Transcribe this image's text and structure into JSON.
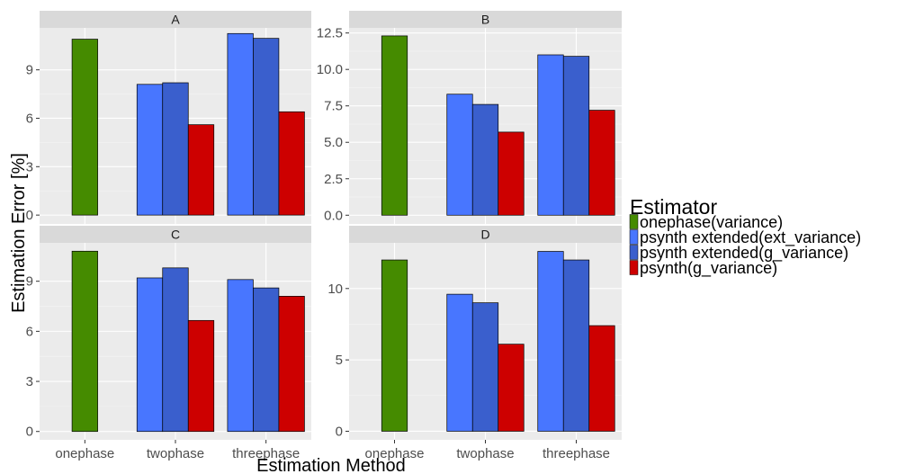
{
  "chart_data": {
    "type": "bar",
    "xlabel": "Estimation Method",
    "ylabel": "Estimation Error [%]",
    "categories": [
      "onephase",
      "twophase",
      "threephase"
    ],
    "legend": {
      "title": "Estimator",
      "position": "right",
      "entries": [
        {
          "name": "onephase(variance)",
          "color": "#458b00"
        },
        {
          "name": "psynth extended(ext_variance)",
          "color": "#4876ff"
        },
        {
          "name": "psynth extended(g_variance)",
          "color": "#3a5fcd"
        },
        {
          "name": "psynth(g_variance)",
          "color": "#cd0000"
        }
      ]
    },
    "grid": true,
    "panels": [
      {
        "label": "A",
        "ylim": [
          -0.55,
          11.6
        ],
        "yticks": [
          0,
          3,
          6,
          9
        ],
        "ytick_labels": [
          "0",
          "3",
          "6",
          "9"
        ],
        "bars": [
          {
            "category": "onephase",
            "series": "onephase(variance)",
            "value": 10.9
          },
          {
            "category": "twophase",
            "series": "psynth extended(ext_variance)",
            "value": 8.1
          },
          {
            "category": "twophase",
            "series": "psynth extended(g_variance)",
            "value": 8.2
          },
          {
            "category": "twophase",
            "series": "psynth(g_variance)",
            "value": 5.6
          },
          {
            "category": "threephase",
            "series": "psynth extended(ext_variance)",
            "value": 11.25
          },
          {
            "category": "threephase",
            "series": "psynth extended(g_variance)",
            "value": 10.95
          },
          {
            "category": "threephase",
            "series": "psynth(g_variance)",
            "value": 6.4
          }
        ]
      },
      {
        "label": "B",
        "ylim": [
          -0.6,
          12.85
        ],
        "yticks": [
          0,
          2.5,
          5,
          7.5,
          10,
          12.5
        ],
        "ytick_labels": [
          "0.0",
          "2.5",
          "5.0",
          "7.5",
          "10.0",
          "12.5"
        ],
        "bars": [
          {
            "category": "onephase",
            "series": "onephase(variance)",
            "value": 12.3
          },
          {
            "category": "twophase",
            "series": "psynth extended(ext_variance)",
            "value": 8.3
          },
          {
            "category": "twophase",
            "series": "psynth extended(g_variance)",
            "value": 7.6
          },
          {
            "category": "twophase",
            "series": "psynth(g_variance)",
            "value": 5.7
          },
          {
            "category": "threephase",
            "series": "psynth extended(ext_variance)",
            "value": 11.0
          },
          {
            "category": "threephase",
            "series": "psynth extended(g_variance)",
            "value": 10.9
          },
          {
            "category": "threephase",
            "series": "psynth(g_variance)",
            "value": 7.2
          }
        ]
      },
      {
        "label": "C",
        "ylim": [
          -0.5,
          11.3
        ],
        "yticks": [
          0,
          3,
          6,
          9
        ],
        "ytick_labels": [
          "0",
          "3",
          "6",
          "9"
        ],
        "bars": [
          {
            "category": "onephase",
            "series": "onephase(variance)",
            "value": 10.8
          },
          {
            "category": "twophase",
            "series": "psynth extended(ext_variance)",
            "value": 9.2
          },
          {
            "category": "twophase",
            "series": "psynth extended(g_variance)",
            "value": 9.8
          },
          {
            "category": "twophase",
            "series": "psynth(g_variance)",
            "value": 6.65
          },
          {
            "category": "threephase",
            "series": "psynth extended(ext_variance)",
            "value": 9.1
          },
          {
            "category": "threephase",
            "series": "psynth extended(g_variance)",
            "value": 8.6
          },
          {
            "category": "threephase",
            "series": "psynth(g_variance)",
            "value": 8.1
          }
        ]
      },
      {
        "label": "D",
        "ylim": [
          -0.6,
          13.2
        ],
        "yticks": [
          0,
          5,
          10
        ],
        "ytick_labels": [
          "0",
          "5",
          "10"
        ],
        "bars": [
          {
            "category": "onephase",
            "series": "onephase(variance)",
            "value": 12.0
          },
          {
            "category": "twophase",
            "series": "psynth extended(ext_variance)",
            "value": 9.6
          },
          {
            "category": "twophase",
            "series": "psynth extended(g_variance)",
            "value": 9.0
          },
          {
            "category": "twophase",
            "series": "psynth(g_variance)",
            "value": 6.1
          },
          {
            "category": "threephase",
            "series": "psynth extended(ext_variance)",
            "value": 12.6
          },
          {
            "category": "threephase",
            "series": "psynth extended(g_variance)",
            "value": 12.0
          },
          {
            "category": "threephase",
            "series": "psynth(g_variance)",
            "value": 7.4
          }
        ]
      }
    ]
  }
}
